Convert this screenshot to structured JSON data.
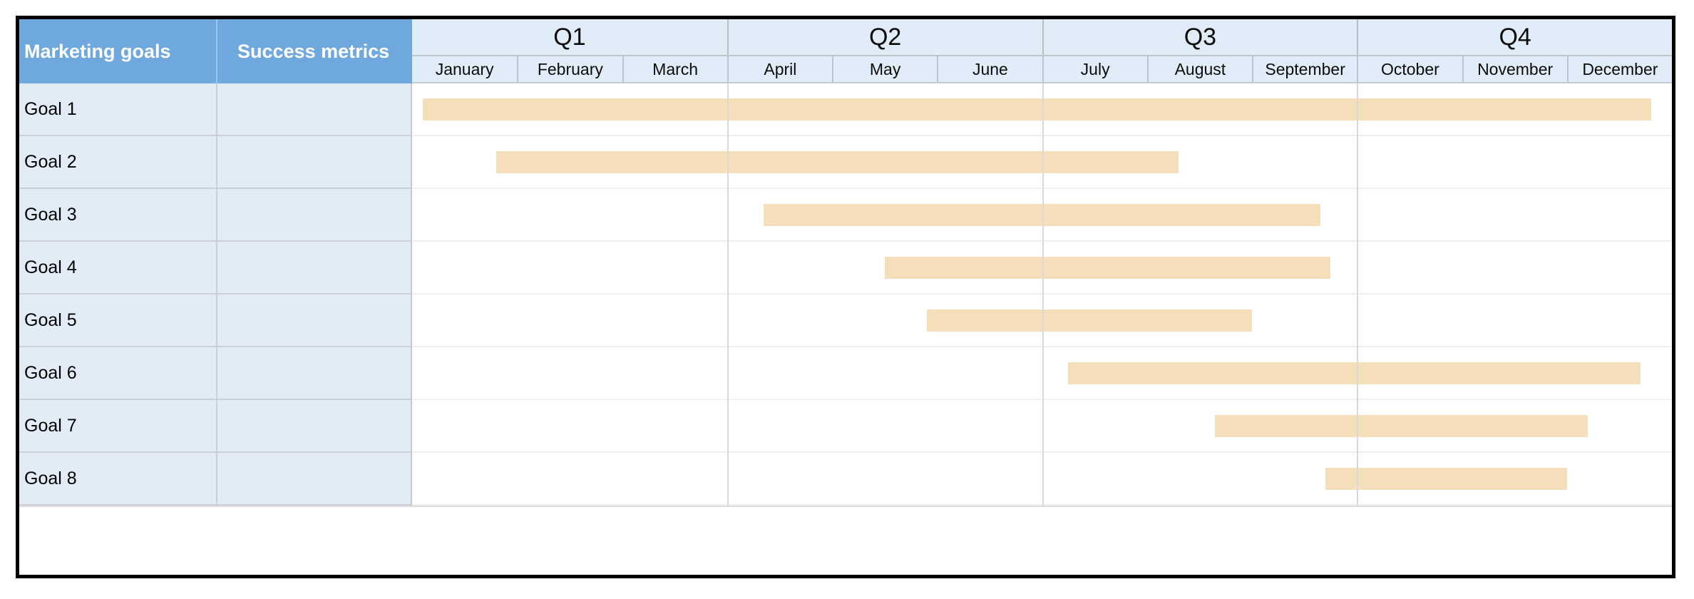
{
  "table": {
    "goals_header": "Marketing goals",
    "metrics_header": "Success metrics"
  },
  "colors": {
    "header_blue": "#6FA8DC",
    "timeline_header_blue": "#E0ECF7",
    "row_label_blue": "#E2ECF6",
    "bar_fill": "#F5DFBA",
    "outer_border": "#000000"
  },
  "chart_data": {
    "type": "bar",
    "subtype": "gantt-timeline",
    "title": "",
    "x_axis": {
      "unit": "months",
      "range_months": [
        0,
        12
      ],
      "quarters": [
        {
          "label": "Q1",
          "months": [
            "January",
            "February",
            "March"
          ]
        },
        {
          "label": "Q2",
          "months": [
            "April",
            "May",
            "June"
          ]
        },
        {
          "label": "Q3",
          "months": [
            "July",
            "August",
            "September"
          ]
        },
        {
          "label": "Q4",
          "months": [
            "October",
            "November",
            "December"
          ]
        }
      ]
    },
    "grid": {
      "vertical_lines": "quarter boundaries only",
      "horizontal_lines": "row boundaries",
      "legend": "none"
    },
    "rows": [
      {
        "goal": "Goal 1",
        "success_metrics": "",
        "bar": {
          "start_month": 0.1,
          "end_month": 11.8,
          "span": "early January – late December"
        }
      },
      {
        "goal": "Goal 2",
        "success_metrics": "",
        "bar": {
          "start_month": 0.8,
          "end_month": 7.3,
          "span": "late January – early August"
        }
      },
      {
        "goal": "Goal 3",
        "success_metrics": "",
        "bar": {
          "start_month": 3.35,
          "end_month": 8.65,
          "span": "mid April – late September"
        }
      },
      {
        "goal": "Goal 4",
        "success_metrics": "",
        "bar": {
          "start_month": 4.5,
          "end_month": 8.75,
          "span": "mid May – late September"
        }
      },
      {
        "goal": "Goal 5",
        "success_metrics": "",
        "bar": {
          "start_month": 4.9,
          "end_month": 8.0,
          "span": "late May – end of August"
        }
      },
      {
        "goal": "Goal 6",
        "success_metrics": "",
        "bar": {
          "start_month": 6.25,
          "end_month": 11.7,
          "span": "early July – late December"
        }
      },
      {
        "goal": "Goal 7",
        "success_metrics": "",
        "bar": {
          "start_month": 7.65,
          "end_month": 11.2,
          "span": "late August – early December"
        }
      },
      {
        "goal": "Goal 8",
        "success_metrics": "",
        "bar": {
          "start_month": 8.7,
          "end_month": 11.0,
          "span": "late September – end of November"
        }
      }
    ]
  }
}
